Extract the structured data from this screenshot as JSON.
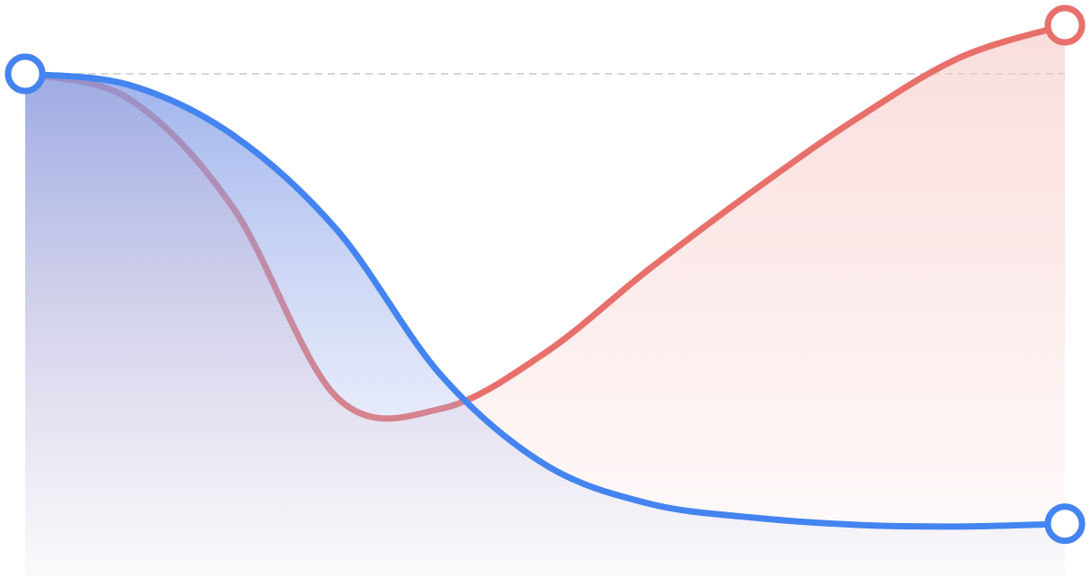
{
  "chart_data": {
    "type": "line",
    "x": [
      0,
      10,
      20,
      30,
      40,
      50,
      60,
      70,
      80,
      90,
      100
    ],
    "xlim": [
      0,
      100
    ],
    "ylim": [
      0,
      100
    ],
    "reference_line": 90,
    "series": [
      {
        "color": "#e8706b",
        "values": [
          90,
          85.5,
          66,
          32,
          30,
          40,
          55,
          69,
          82,
          93,
          98.7
        ]
      },
      {
        "color": "#4384f0",
        "values": [
          90,
          88,
          79,
          62,
          36,
          20,
          13,
          10.5,
          9.2,
          8.9,
          9.4
        ]
      }
    ]
  }
}
